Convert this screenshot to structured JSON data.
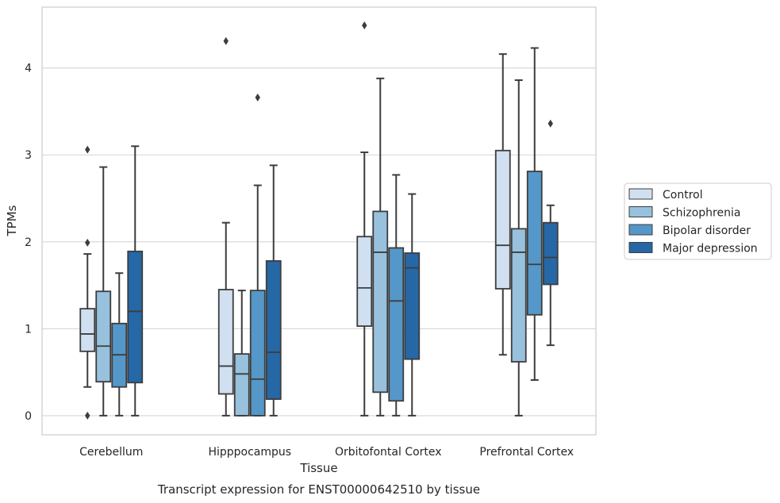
{
  "chart_data": {
    "type": "box",
    "title": "",
    "caption": "Transcript expression for ENST00000642510 by tissue",
    "xlabel": "Tissue",
    "ylabel": "TPMs",
    "ylim": [
      -0.22,
      4.7
    ],
    "yticks": [
      0,
      1,
      2,
      3,
      4
    ],
    "grid": "horizontal",
    "legend_position": "right",
    "categories": [
      "Cerebellum",
      "Hipppocampus",
      "Orbitofontal Cortex",
      "Prefrontal Cortex"
    ],
    "series": [
      {
        "name": "Control",
        "color": "#d0e0f1",
        "boxes": [
          {
            "whislo": 0.33,
            "q1": 0.74,
            "med": 0.94,
            "q3": 1.23,
            "whishi": 1.86,
            "fliers": [
              0.0,
              1.99,
              3.06
            ]
          },
          {
            "whislo": 0.0,
            "q1": 0.25,
            "med": 0.57,
            "q3": 1.45,
            "whishi": 2.22,
            "fliers": [
              4.31
            ]
          },
          {
            "whislo": 0.0,
            "q1": 1.03,
            "med": 1.47,
            "q3": 2.06,
            "whishi": 3.03,
            "fliers": [
              4.49
            ]
          },
          {
            "whislo": 0.7,
            "q1": 1.46,
            "med": 1.96,
            "q3": 3.05,
            "whishi": 4.16,
            "fliers": []
          }
        ]
      },
      {
        "name": "Schizophrenia",
        "color": "#97c1dd",
        "boxes": [
          {
            "whislo": 0.0,
            "q1": 0.39,
            "med": 0.8,
            "q3": 1.43,
            "whishi": 2.86,
            "fliers": []
          },
          {
            "whislo": 0.0,
            "q1": 0.0,
            "med": 0.48,
            "q3": 0.71,
            "whishi": 1.44,
            "fliers": []
          },
          {
            "whislo": 0.0,
            "q1": 0.27,
            "med": 1.88,
            "q3": 2.35,
            "whishi": 3.88,
            "fliers": []
          },
          {
            "whislo": 0.0,
            "q1": 0.62,
            "med": 1.88,
            "q3": 2.15,
            "whishi": 3.86,
            "fliers": []
          }
        ]
      },
      {
        "name": "Bipolar disorder",
        "color": "#5597c8",
        "boxes": [
          {
            "whislo": 0.0,
            "q1": 0.33,
            "med": 0.7,
            "q3": 1.06,
            "whishi": 1.64,
            "fliers": []
          },
          {
            "whislo": 0.0,
            "q1": 0.0,
            "med": 0.42,
            "q3": 1.44,
            "whishi": 2.65,
            "fliers": [
              3.66
            ]
          },
          {
            "whislo": 0.0,
            "q1": 0.17,
            "med": 1.32,
            "q3": 1.93,
            "whishi": 2.77,
            "fliers": []
          },
          {
            "whislo": 0.41,
            "q1": 1.16,
            "med": 1.74,
            "q3": 2.81,
            "whishi": 4.23,
            "fliers": []
          }
        ]
      },
      {
        "name": "Major depression",
        "color": "#2667a6",
        "boxes": [
          {
            "whislo": 0.0,
            "q1": 0.38,
            "med": 1.2,
            "q3": 1.89,
            "whishi": 3.1,
            "fliers": []
          },
          {
            "whislo": 0.0,
            "q1": 0.19,
            "med": 0.73,
            "q3": 1.78,
            "whishi": 2.88,
            "fliers": []
          },
          {
            "whislo": 0.0,
            "q1": 0.65,
            "med": 1.7,
            "q3": 1.87,
            "whishi": 2.55,
            "fliers": []
          },
          {
            "whislo": 0.81,
            "q1": 1.51,
            "med": 1.82,
            "q3": 2.22,
            "whishi": 2.42,
            "fliers": [
              3.36
            ]
          }
        ]
      }
    ]
  }
}
